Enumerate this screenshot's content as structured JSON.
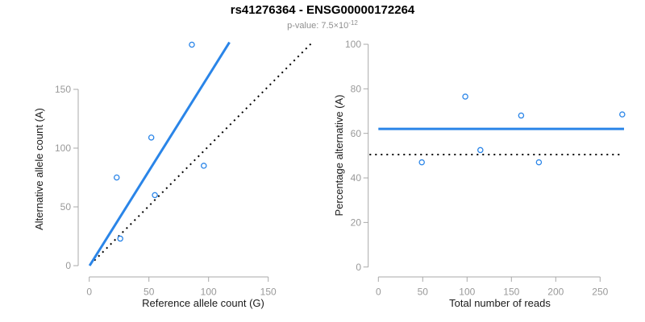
{
  "header": {
    "title": "rs41276364 - ENSG00000172264",
    "subtitle_prefix": "p-value: ",
    "subtitle_value": "7.5×10",
    "subtitle_exponent": "-12"
  },
  "colors": {
    "accent_blue": "#2a85e8",
    "dotted_line": "#000000",
    "axis_line": "#a9a9a9",
    "tick_label": "#999999",
    "axis_title": "#1a1a1a",
    "subtitle_gray": "#8f8f8f"
  },
  "chart_data": [
    {
      "type": "scatter",
      "panel": "left",
      "xlabel": "Reference allele count (G)",
      "ylabel": "Alternative allele count (A)",
      "xticks": [
        0,
        50,
        100,
        150
      ],
      "yticks": [
        0,
        50,
        100,
        150
      ],
      "xlim": [
        0,
        187
      ],
      "ylim": [
        0,
        190
      ],
      "grid": false,
      "points": [
        {
          "x": 23,
          "y": 75
        },
        {
          "x": 26,
          "y": 23
        },
        {
          "x": 52,
          "y": 109
        },
        {
          "x": 55,
          "y": 60
        },
        {
          "x": 86,
          "y": 188
        },
        {
          "x": 96,
          "y": 85
        }
      ],
      "lines": [
        {
          "name": "fit-line",
          "style": "solid",
          "color_key": "accent_blue",
          "x1": 0.3,
          "y1": 0,
          "x2": 117.5,
          "y2": 190
        },
        {
          "name": "identity-line",
          "style": "dotted",
          "color_key": "dotted_line",
          "x1": 1,
          "y1": 1,
          "x2": 187,
          "y2": 190
        }
      ]
    },
    {
      "type": "scatter",
      "panel": "right",
      "xlabel": "Total number of reads",
      "ylabel": "Percentage alternative (A)",
      "xticks": [
        0,
        50,
        100,
        150,
        200,
        250
      ],
      "yticks": [
        0,
        20,
        40,
        60,
        80,
        100
      ],
      "xlim": [
        -10,
        277
      ],
      "ylim": [
        0,
        100
      ],
      "grid": false,
      "points": [
        {
          "x": 49,
          "y": 47
        },
        {
          "x": 98,
          "y": 76.5
        },
        {
          "x": 115,
          "y": 52.5
        },
        {
          "x": 161,
          "y": 68
        },
        {
          "x": 181,
          "y": 47
        },
        {
          "x": 275,
          "y": 68.5
        }
      ],
      "lines": [
        {
          "name": "mean-percentage-line",
          "style": "solid",
          "color_key": "accent_blue",
          "x1": 0,
          "y1": 62,
          "x2": 277,
          "y2": 62
        },
        {
          "name": "fifty-percent-line",
          "style": "dotted",
          "color_key": "dotted_line",
          "x1": -10,
          "y1": 50.5,
          "x2": 274,
          "y2": 50.5
        }
      ]
    }
  ]
}
